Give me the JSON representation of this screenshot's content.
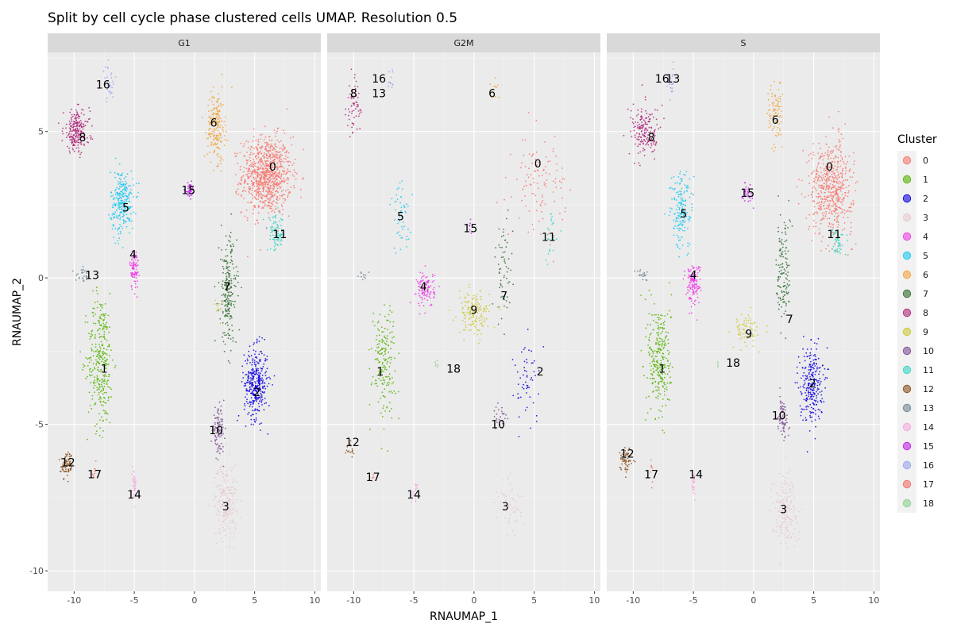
{
  "chart_data": {
    "type": "scatter",
    "title": "Split by cell cycle phase clustered cells UMAP. Resolution 0.5",
    "xlabel": "RNAUMAP_1",
    "ylabel": "RNAUMAP_2",
    "xlim": [
      -12.2,
      10.5
    ],
    "ylim": [
      -10.7,
      7.7
    ],
    "xticks": [
      -10,
      -5,
      0,
      5,
      10
    ],
    "yticks": [
      -10,
      -5,
      0,
      5
    ],
    "grid": true,
    "legend": {
      "title": "Cluster",
      "position": "right",
      "items": [
        "0",
        "1",
        "2",
        "3",
        "4",
        "5",
        "6",
        "7",
        "8",
        "9",
        "10",
        "11",
        "12",
        "13",
        "14",
        "15",
        "16",
        "17",
        "18"
      ]
    },
    "cluster_colors": {
      "0": "#F8766D",
      "1": "#53B400",
      "2": "#0E00E0",
      "3": "#E8C9CD",
      "4": "#F03CE6",
      "5": "#19C8F0",
      "6": "#F2A33A",
      "7": "#2E6B2E",
      "8": "#B0257A",
      "9": "#CCC832",
      "10": "#7E4A92",
      "11": "#36D4C3",
      "12": "#8A4E1A",
      "13": "#6E8595",
      "14": "#F5A6DF",
      "15": "#C21EE6",
      "16": "#9AA3F0",
      "17": "#F07066",
      "18": "#8BD18B"
    },
    "panels": [
      {
        "name": "G1",
        "clusters": [
          {
            "cluster": "0",
            "x": 6.0,
            "y": 3.5,
            "sx": 1.7,
            "sy": 1.1,
            "n": 900,
            "label": [
              6.5,
              3.8
            ]
          },
          {
            "cluster": "1",
            "x": -7.8,
            "y": -2.8,
            "sx": 0.9,
            "sy": 1.9,
            "n": 320,
            "label": [
              -7.5,
              -3.1
            ]
          },
          {
            "cluster": "2",
            "x": 5.1,
            "y": -3.6,
            "sx": 0.8,
            "sy": 1.0,
            "n": 350,
            "label": [
              5.2,
              -3.9
            ]
          },
          {
            "cluster": "3",
            "x": 2.6,
            "y": -7.6,
            "sx": 0.8,
            "sy": 1.1,
            "n": 220,
            "label": [
              2.6,
              -7.8
            ]
          },
          {
            "cluster": "4",
            "x": -5.0,
            "y": 0.3,
            "sx": 0.3,
            "sy": 0.6,
            "n": 90,
            "label": [
              -5.1,
              0.8
            ]
          },
          {
            "cluster": "5",
            "x": -6.0,
            "y": 2.6,
            "sx": 0.8,
            "sy": 0.9,
            "n": 260,
            "label": [
              -5.7,
              2.4
            ]
          },
          {
            "cluster": "6",
            "x": 1.8,
            "y": 5.2,
            "sx": 0.6,
            "sy": 1.0,
            "n": 200,
            "label": [
              1.6,
              5.3
            ]
          },
          {
            "cluster": "7",
            "x": 2.8,
            "y": -0.5,
            "sx": 0.6,
            "sy": 1.6,
            "n": 220,
            "label": [
              2.7,
              -0.3
            ]
          },
          {
            "cluster": "8",
            "x": -9.8,
            "y": 5.0,
            "sx": 0.9,
            "sy": 0.6,
            "n": 230,
            "label": [
              -9.3,
              4.8
            ]
          },
          {
            "cluster": "9",
            "x": 2.0,
            "y": -1.0,
            "sx": 0.3,
            "sy": 0.3,
            "n": 10,
            "label": null
          },
          {
            "cluster": "10",
            "x": 2.0,
            "y": -5.2,
            "sx": 0.4,
            "sy": 0.6,
            "n": 100,
            "label": [
              1.8,
              -5.2
            ]
          },
          {
            "cluster": "11",
            "x": 6.8,
            "y": 1.5,
            "sx": 0.6,
            "sy": 0.5,
            "n": 90,
            "label": [
              7.1,
              1.5
            ]
          },
          {
            "cluster": "12",
            "x": -10.6,
            "y": -6.4,
            "sx": 0.4,
            "sy": 0.35,
            "n": 80,
            "label": [
              -10.5,
              -6.3
            ]
          },
          {
            "cluster": "13",
            "x": -9.2,
            "y": 0.1,
            "sx": 0.6,
            "sy": 0.2,
            "n": 25,
            "label": [
              -8.5,
              0.1
            ]
          },
          {
            "cluster": "14",
            "x": -5.0,
            "y": -7.0,
            "sx": 0.12,
            "sy": 0.4,
            "n": 35,
            "label": [
              -5.0,
              -7.4
            ]
          },
          {
            "cluster": "15",
            "x": -0.4,
            "y": 3.0,
            "sx": 0.3,
            "sy": 0.2,
            "n": 45,
            "label": [
              -0.5,
              3.0
            ]
          },
          {
            "cluster": "16",
            "x": -7.1,
            "y": 6.6,
            "sx": 0.4,
            "sy": 0.5,
            "n": 30,
            "label": [
              -7.6,
              6.6
            ]
          },
          {
            "cluster": "17",
            "x": -8.3,
            "y": -6.7,
            "sx": 0.15,
            "sy": 0.3,
            "n": 10,
            "label": [
              -8.3,
              -6.7
            ]
          }
        ]
      },
      {
        "name": "G2M",
        "clusters": [
          {
            "cluster": "0",
            "x": 5.5,
            "y": 3.3,
            "sx": 1.8,
            "sy": 1.3,
            "n": 110,
            "label": [
              5.3,
              3.9
            ]
          },
          {
            "cluster": "1",
            "x": -7.5,
            "y": -2.8,
            "sx": 0.8,
            "sy": 1.6,
            "n": 180,
            "label": [
              -7.8,
              -3.2
            ]
          },
          {
            "cluster": "2",
            "x": 4.5,
            "y": -3.5,
            "sx": 1.0,
            "sy": 1.2,
            "n": 55,
            "label": [
              5.5,
              -3.2
            ]
          },
          {
            "cluster": "3",
            "x": 3.0,
            "y": -7.8,
            "sx": 0.9,
            "sy": 0.9,
            "n": 60,
            "label": [
              2.6,
              -7.8
            ]
          },
          {
            "cluster": "4",
            "x": -4.0,
            "y": -0.4,
            "sx": 0.6,
            "sy": 0.5,
            "n": 110,
            "label": [
              -4.2,
              -0.3
            ]
          },
          {
            "cluster": "5",
            "x": -6.0,
            "y": 2.0,
            "sx": 0.8,
            "sy": 1.0,
            "n": 50,
            "label": [
              -6.1,
              2.1
            ]
          },
          {
            "cluster": "6",
            "x": 1.8,
            "y": 6.5,
            "sx": 0.5,
            "sy": 0.3,
            "n": 10,
            "label": [
              1.5,
              6.3
            ]
          },
          {
            "cluster": "7",
            "x": 2.5,
            "y": 0.3,
            "sx": 0.6,
            "sy": 1.6,
            "n": 60,
            "label": [
              2.5,
              -0.6
            ]
          },
          {
            "cluster": "8",
            "x": -10.0,
            "y": 5.8,
            "sx": 0.5,
            "sy": 0.8,
            "n": 60,
            "label": [
              -10.0,
              6.3
            ]
          },
          {
            "cluster": "9",
            "x": 0.0,
            "y": -1.2,
            "sx": 1.1,
            "sy": 0.6,
            "n": 160,
            "label": [
              0.0,
              -1.1
            ]
          },
          {
            "cluster": "10",
            "x": 2.2,
            "y": -4.8,
            "sx": 0.5,
            "sy": 0.6,
            "n": 25,
            "label": [
              2.0,
              -5.0
            ]
          },
          {
            "cluster": "11",
            "x": 6.5,
            "y": 1.4,
            "sx": 0.5,
            "sy": 0.7,
            "n": 25,
            "label": [
              6.2,
              1.4
            ]
          },
          {
            "cluster": "12",
            "x": -10.3,
            "y": -6.0,
            "sx": 0.3,
            "sy": 0.4,
            "n": 15,
            "label": [
              -10.1,
              -5.6
            ]
          },
          {
            "cluster": "13",
            "x": -9.2,
            "y": 0.1,
            "sx": 0.5,
            "sy": 0.2,
            "n": 10,
            "label": [
              -7.9,
              6.3
            ]
          },
          {
            "cluster": "14",
            "x": -4.9,
            "y": -7.3,
            "sx": 0.2,
            "sy": 0.3,
            "n": 15,
            "label": [
              -5.0,
              -7.4
            ]
          },
          {
            "cluster": "15",
            "x": -0.3,
            "y": 1.8,
            "sx": 0.2,
            "sy": 0.2,
            "n": 6,
            "label": [
              -0.3,
              1.7
            ]
          },
          {
            "cluster": "16",
            "x": -6.9,
            "y": 6.7,
            "sx": 0.3,
            "sy": 0.4,
            "n": 12,
            "label": [
              -7.9,
              6.8
            ]
          },
          {
            "cluster": "17",
            "x": -8.4,
            "y": -6.7,
            "sx": 0.15,
            "sy": 0.3,
            "n": 4,
            "label": [
              -8.4,
              -6.8
            ]
          },
          {
            "cluster": "18",
            "x": -3.1,
            "y": -2.9,
            "sx": 0.15,
            "sy": 0.15,
            "n": 6,
            "label": [
              -1.7,
              -3.1
            ]
          }
        ]
      },
      {
        "name": "S",
        "clusters": [
          {
            "cluster": "0",
            "x": 6.4,
            "y": 3.1,
            "sx": 1.5,
            "sy": 1.3,
            "n": 550,
            "label": [
              6.3,
              3.8
            ]
          },
          {
            "cluster": "1",
            "x": -7.8,
            "y": -2.8,
            "sx": 0.8,
            "sy": 1.7,
            "n": 280,
            "label": [
              -7.6,
              -3.1
            ]
          },
          {
            "cluster": "2",
            "x": 4.8,
            "y": -3.6,
            "sx": 0.8,
            "sy": 1.1,
            "n": 260,
            "label": [
              4.9,
              -3.6
            ]
          },
          {
            "cluster": "3",
            "x": 2.6,
            "y": -7.9,
            "sx": 0.9,
            "sy": 1.0,
            "n": 180,
            "label": [
              2.5,
              -7.9
            ]
          },
          {
            "cluster": "4",
            "x": -5.0,
            "y": -0.2,
            "sx": 0.5,
            "sy": 0.6,
            "n": 140,
            "label": [
              -5.0,
              0.1
            ]
          },
          {
            "cluster": "5",
            "x": -6.0,
            "y": 2.3,
            "sx": 0.8,
            "sy": 1.1,
            "n": 170,
            "label": [
              -5.8,
              2.2
            ]
          },
          {
            "cluster": "6",
            "x": 1.8,
            "y": 5.6,
            "sx": 0.5,
            "sy": 1.0,
            "n": 90,
            "label": [
              1.8,
              5.4
            ]
          },
          {
            "cluster": "7",
            "x": 2.5,
            "y": 0.2,
            "sx": 0.5,
            "sy": 1.7,
            "n": 130,
            "label": [
              3.0,
              -1.4
            ]
          },
          {
            "cluster": "8",
            "x": -9.0,
            "y": 5.0,
            "sx": 1.0,
            "sy": 0.7,
            "n": 180,
            "label": [
              -8.5,
              4.8
            ]
          },
          {
            "cluster": "9",
            "x": -0.6,
            "y": -1.8,
            "sx": 0.9,
            "sy": 0.5,
            "n": 70,
            "label": [
              -0.4,
              -1.9
            ]
          },
          {
            "cluster": "10",
            "x": 2.4,
            "y": -4.8,
            "sx": 0.4,
            "sy": 0.6,
            "n": 70,
            "label": [
              2.1,
              -4.7
            ]
          },
          {
            "cluster": "11",
            "x": 7.0,
            "y": 1.3,
            "sx": 0.4,
            "sy": 0.4,
            "n": 50,
            "label": [
              6.7,
              1.5
            ]
          },
          {
            "cluster": "12",
            "x": -10.6,
            "y": -6.2,
            "sx": 0.4,
            "sy": 0.35,
            "n": 60,
            "label": [
              -10.5,
              -6.0
            ]
          },
          {
            "cluster": "13",
            "x": -9.2,
            "y": 0.1,
            "sx": 0.5,
            "sy": 0.2,
            "n": 20,
            "label": [
              -6.7,
              6.8
            ]
          },
          {
            "cluster": "14",
            "x": -5.0,
            "y": -7.0,
            "sx": 0.12,
            "sy": 0.4,
            "n": 25,
            "label": [
              -4.8,
              -6.7
            ]
          },
          {
            "cluster": "15",
            "x": -0.5,
            "y": 2.9,
            "sx": 0.3,
            "sy": 0.3,
            "n": 30,
            "label": [
              -0.5,
              2.9
            ]
          },
          {
            "cluster": "16",
            "x": -6.9,
            "y": 6.7,
            "sx": 0.3,
            "sy": 0.4,
            "n": 20,
            "label": [
              -7.6,
              6.8
            ]
          },
          {
            "cluster": "17",
            "x": -8.5,
            "y": -6.7,
            "sx": 0.15,
            "sy": 0.3,
            "n": 8,
            "label": [
              -8.5,
              -6.7
            ]
          },
          {
            "cluster": "18",
            "x": -3.0,
            "y": -2.9,
            "sx": 0.15,
            "sy": 0.15,
            "n": 4,
            "label": [
              -1.7,
              -2.9
            ]
          }
        ]
      }
    ]
  }
}
